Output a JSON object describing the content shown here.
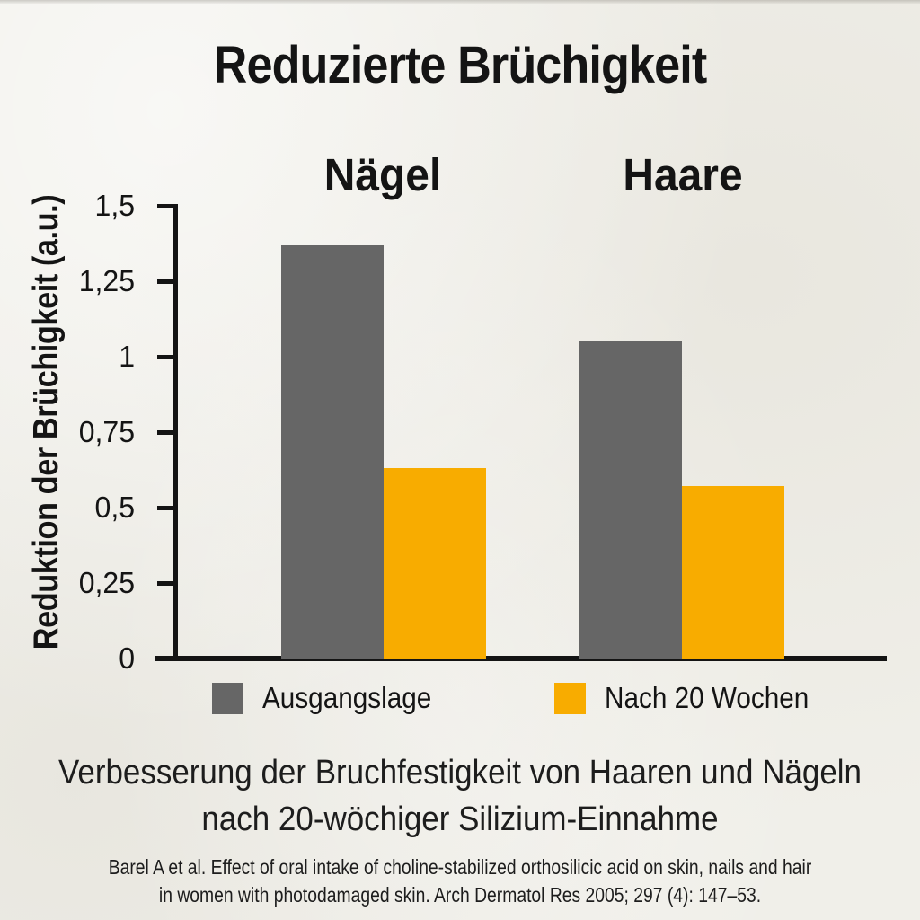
{
  "colors": {
    "background": "#f0efe9",
    "text": "#141414",
    "axis": "#141414",
    "bar_gray": "#666666",
    "bar_orange": "#f8ac00"
  },
  "chart_data": {
    "type": "bar",
    "title": "Reduzierte Brüchigkeit",
    "categories": [
      "Nägel",
      "Haare"
    ],
    "series": [
      {
        "name": "Ausgangslage",
        "color": "#666666",
        "values": [
          1.37,
          1.05
        ]
      },
      {
        "name": "Nach 20 Wochen",
        "color": "#f8ac00",
        "values": [
          0.63,
          0.57
        ]
      }
    ],
    "xlabel": "",
    "ylabel": "Reduktion der Brüchigkeit (a.u.)",
    "ylim": [
      0,
      1.5
    ],
    "yticks": [
      {
        "label": "1,5",
        "value": 1.5
      },
      {
        "label": "1,25",
        "value": 1.25
      },
      {
        "label": "1",
        "value": 1.0
      },
      {
        "label": "0,75",
        "value": 0.75
      },
      {
        "label": "0,5",
        "value": 0.5
      },
      {
        "label": "0,25",
        "value": 0.25
      },
      {
        "label": "0",
        "value": 0.0
      }
    ],
    "grid": false,
    "legend_position": "bottom"
  },
  "caption": {
    "line1": "Verbesserung der Bruchfestigkeit von Haaren und Nägeln",
    "line2": "nach 20-wöchiger Silizium-Einnahme"
  },
  "citation": {
    "line1": "Barel A et al. Effect of oral intake of choline-stabilized orthosilicic acid on skin, nails and hair",
    "line2": "in women with photodamaged skin. Arch Dermatol Res 2005; 297 (4): 147–53."
  }
}
